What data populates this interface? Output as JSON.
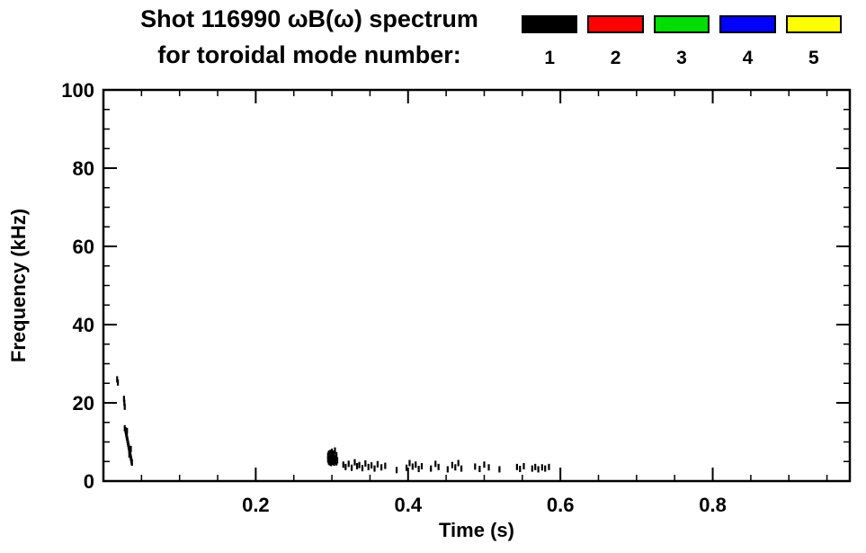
{
  "chart_data": {
    "type": "scatter",
    "title": "Shot 116990 ωB(ω) spectrum",
    "subtitle": "for toroidal mode number:",
    "xlabel": "Time (s)",
    "ylabel": "Frequency (kHz)",
    "xlim": [
      0,
      0.98
    ],
    "ylim": [
      0,
      100
    ],
    "xticks": [
      0.2,
      0.4,
      0.6,
      0.8
    ],
    "yticks": [
      0,
      20,
      40,
      60,
      80,
      100
    ],
    "x_minor_step": 0.05,
    "y_minor_step": 5,
    "grid": false,
    "legend_position": "top-right",
    "legend": [
      {
        "label": "1",
        "color": "#000000"
      },
      {
        "label": "2",
        "color": "#ff0000"
      },
      {
        "label": "3",
        "color": "#00dd00"
      },
      {
        "label": "4",
        "color": "#0000ff"
      },
      {
        "label": "5",
        "color": "#ffff00"
      }
    ],
    "series": [
      {
        "name": "1",
        "color": "#000000",
        "points": [
          [
            0.018,
            26
          ],
          [
            0.019,
            25.2
          ],
          [
            0.027,
            21
          ],
          [
            0.0275,
            20
          ],
          [
            0.028,
            19
          ],
          [
            0.028,
            13.5
          ],
          [
            0.029,
            13
          ],
          [
            0.0295,
            12.5
          ],
          [
            0.03,
            12
          ],
          [
            0.0305,
            11.5
          ],
          [
            0.031,
            12.8
          ],
          [
            0.031,
            11
          ],
          [
            0.0315,
            10.5
          ],
          [
            0.032,
            10
          ],
          [
            0.0325,
            9.5
          ],
          [
            0.033,
            9
          ],
          [
            0.0335,
            8.5
          ],
          [
            0.034,
            8
          ],
          [
            0.034,
            6.8
          ],
          [
            0.0345,
            7.5
          ],
          [
            0.035,
            7
          ],
          [
            0.0355,
            6.5
          ],
          [
            0.036,
            8.2
          ],
          [
            0.036,
            6
          ],
          [
            0.0365,
            5.5
          ],
          [
            0.037,
            5
          ],
          [
            0.0375,
            4.7
          ],
          [
            0.295,
            5.5
          ],
          [
            0.295,
            6.5
          ],
          [
            0.296,
            5
          ],
          [
            0.296,
            7
          ],
          [
            0.297,
            4.8
          ],
          [
            0.297,
            6
          ],
          [
            0.298,
            5.5
          ],
          [
            0.298,
            7.2
          ],
          [
            0.299,
            4.6
          ],
          [
            0.299,
            6.3
          ],
          [
            0.3,
            5.2
          ],
          [
            0.3,
            7.5
          ],
          [
            0.301,
            4.9
          ],
          [
            0.301,
            6.1
          ],
          [
            0.302,
            5.6
          ],
          [
            0.302,
            7
          ],
          [
            0.303,
            4.7
          ],
          [
            0.303,
            6.4
          ],
          [
            0.304,
            5.1
          ],
          [
            0.304,
            7.8
          ],
          [
            0.305,
            5.8
          ],
          [
            0.306,
            4.8
          ],
          [
            0.306,
            6.6
          ],
          [
            0.307,
            5.3
          ],
          [
            0.315,
            4.2
          ],
          [
            0.318,
            3.6
          ],
          [
            0.322,
            4.4
          ],
          [
            0.326,
            3.4
          ],
          [
            0.33,
            4.8
          ],
          [
            0.333,
            3.8
          ],
          [
            0.336,
            4.1
          ],
          [
            0.34,
            3.3
          ],
          [
            0.344,
            4.5
          ],
          [
            0.348,
            3.6
          ],
          [
            0.352,
            4.0
          ],
          [
            0.356,
            3.2
          ],
          [
            0.36,
            4.3
          ],
          [
            0.365,
            3.5
          ],
          [
            0.37,
            3.9
          ],
          [
            0.385,
            2.8
          ],
          [
            0.398,
            3.4
          ],
          [
            0.402,
            4.6
          ],
          [
            0.406,
            3.7
          ],
          [
            0.41,
            4.2
          ],
          [
            0.414,
            3.1
          ],
          [
            0.418,
            3.8
          ],
          [
            0.43,
            3.2
          ],
          [
            0.436,
            4.4
          ],
          [
            0.44,
            3.6
          ],
          [
            0.452,
            3.0
          ],
          [
            0.458,
            4.1
          ],
          [
            0.462,
            3.5
          ],
          [
            0.466,
            4.6
          ],
          [
            0.47,
            3.2
          ],
          [
            0.488,
            3.7
          ],
          [
            0.494,
            3.1
          ],
          [
            0.5,
            4.2
          ],
          [
            0.506,
            3.5
          ],
          [
            0.52,
            3.0
          ],
          [
            0.543,
            3.6
          ],
          [
            0.547,
            3.1
          ],
          [
            0.552,
            3.8
          ],
          [
            0.563,
            3.2
          ],
          [
            0.567,
            3.6
          ],
          [
            0.571,
            3.0
          ],
          [
            0.576,
            3.5
          ],
          [
            0.58,
            3.2
          ],
          [
            0.585,
            3.6
          ]
        ]
      }
    ]
  }
}
